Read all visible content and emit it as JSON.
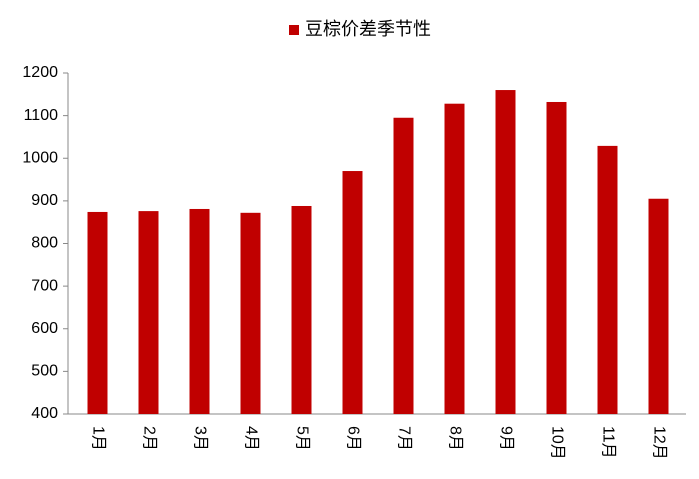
{
  "chart_data": {
    "type": "bar",
    "legend": "豆棕价差季节性",
    "categories": [
      "1月",
      "2月",
      "3月",
      "4月",
      "5月",
      "6月",
      "7月",
      "8月",
      "9月",
      "10月",
      "11月",
      "12月"
    ],
    "values": [
      874,
      876,
      881,
      872,
      888,
      970,
      1095,
      1128,
      1160,
      1132,
      1029,
      905
    ],
    "color": "#c00000",
    "ylim": [
      400,
      1200
    ],
    "yticks": [
      400,
      500,
      600,
      700,
      800,
      900,
      1000,
      1100,
      1200
    ],
    "grid": false
  }
}
